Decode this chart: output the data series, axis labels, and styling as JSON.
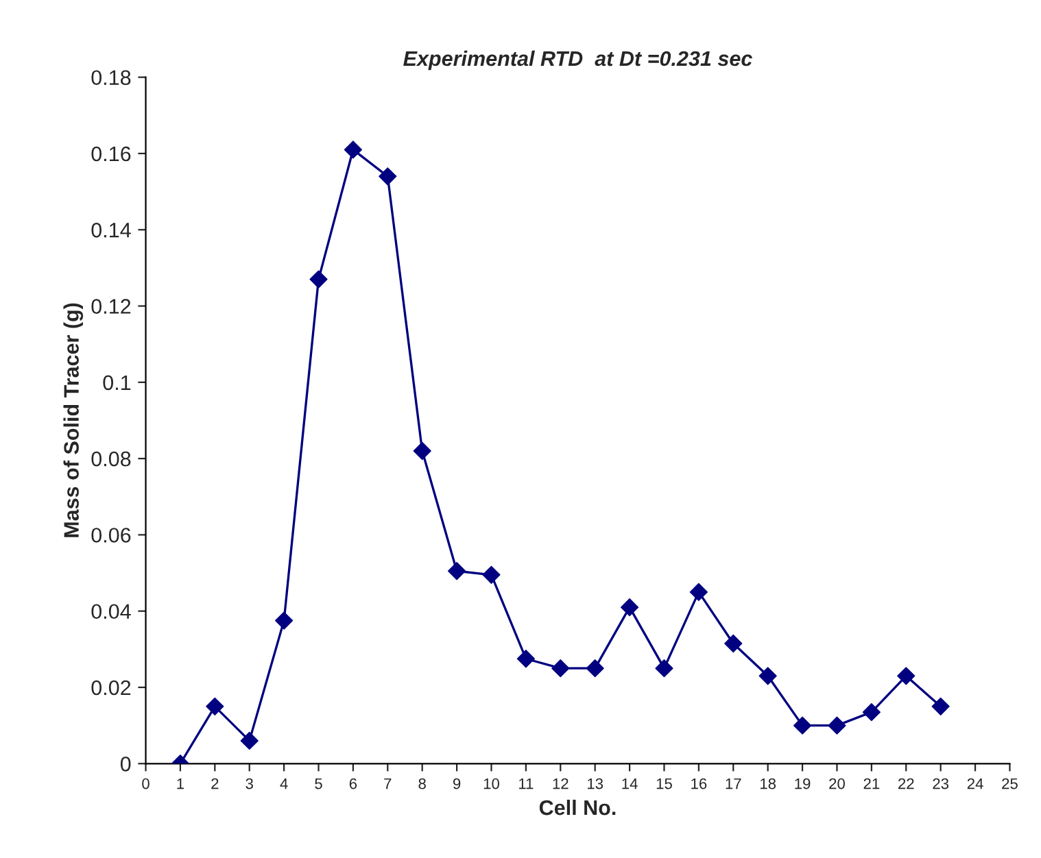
{
  "chart_data": {
    "type": "line",
    "title": "Experimental RTD  at Dt =0.231 sec",
    "xlabel": "Cell No.",
    "ylabel": "Mass of Solid Tracer (g)",
    "x": [
      1,
      2,
      3,
      4,
      5,
      6,
      7,
      8,
      9,
      10,
      11,
      12,
      13,
      14,
      15,
      16,
      17,
      18,
      19,
      20,
      21,
      22,
      23
    ],
    "series": [
      {
        "color": "#000080",
        "values": [
          0,
          0.015,
          0.006,
          0.0375,
          0.127,
          0.161,
          0.154,
          0.082,
          0.0505,
          0.0495,
          0.0275,
          0.025,
          0.025,
          0.041,
          0.025,
          0.045,
          0.0315,
          0.023,
          0.01,
          0.01,
          0.0135,
          0.023,
          0.015
        ]
      }
    ],
    "xlim": [
      0,
      25
    ],
    "xticks": [
      0,
      1,
      2,
      3,
      4,
      5,
      6,
      7,
      8,
      9,
      10,
      11,
      12,
      13,
      14,
      15,
      16,
      17,
      18,
      19,
      20,
      21,
      22,
      23,
      24,
      25
    ],
    "ylim": [
      0,
      0.18
    ],
    "yticks": [
      0,
      {
        "value": 0.02,
        "label": "0.02"
      },
      {
        "value": 0.04,
        "label": "0.04"
      },
      {
        "value": 0.06,
        "label": "0.06"
      },
      {
        "value": 0.08,
        "label": "0.08"
      },
      {
        "value": 0.1,
        "label": "0.1"
      },
      {
        "value": 0.12,
        "label": "0.12"
      },
      {
        "value": 0.14,
        "label": "0.14"
      },
      {
        "value": 0.16,
        "label": "0.16"
      },
      {
        "value": 0.18,
        "label": "0.18"
      }
    ],
    "grid": false,
    "legend": false,
    "marker": "diamond",
    "line_style": "solid"
  }
}
